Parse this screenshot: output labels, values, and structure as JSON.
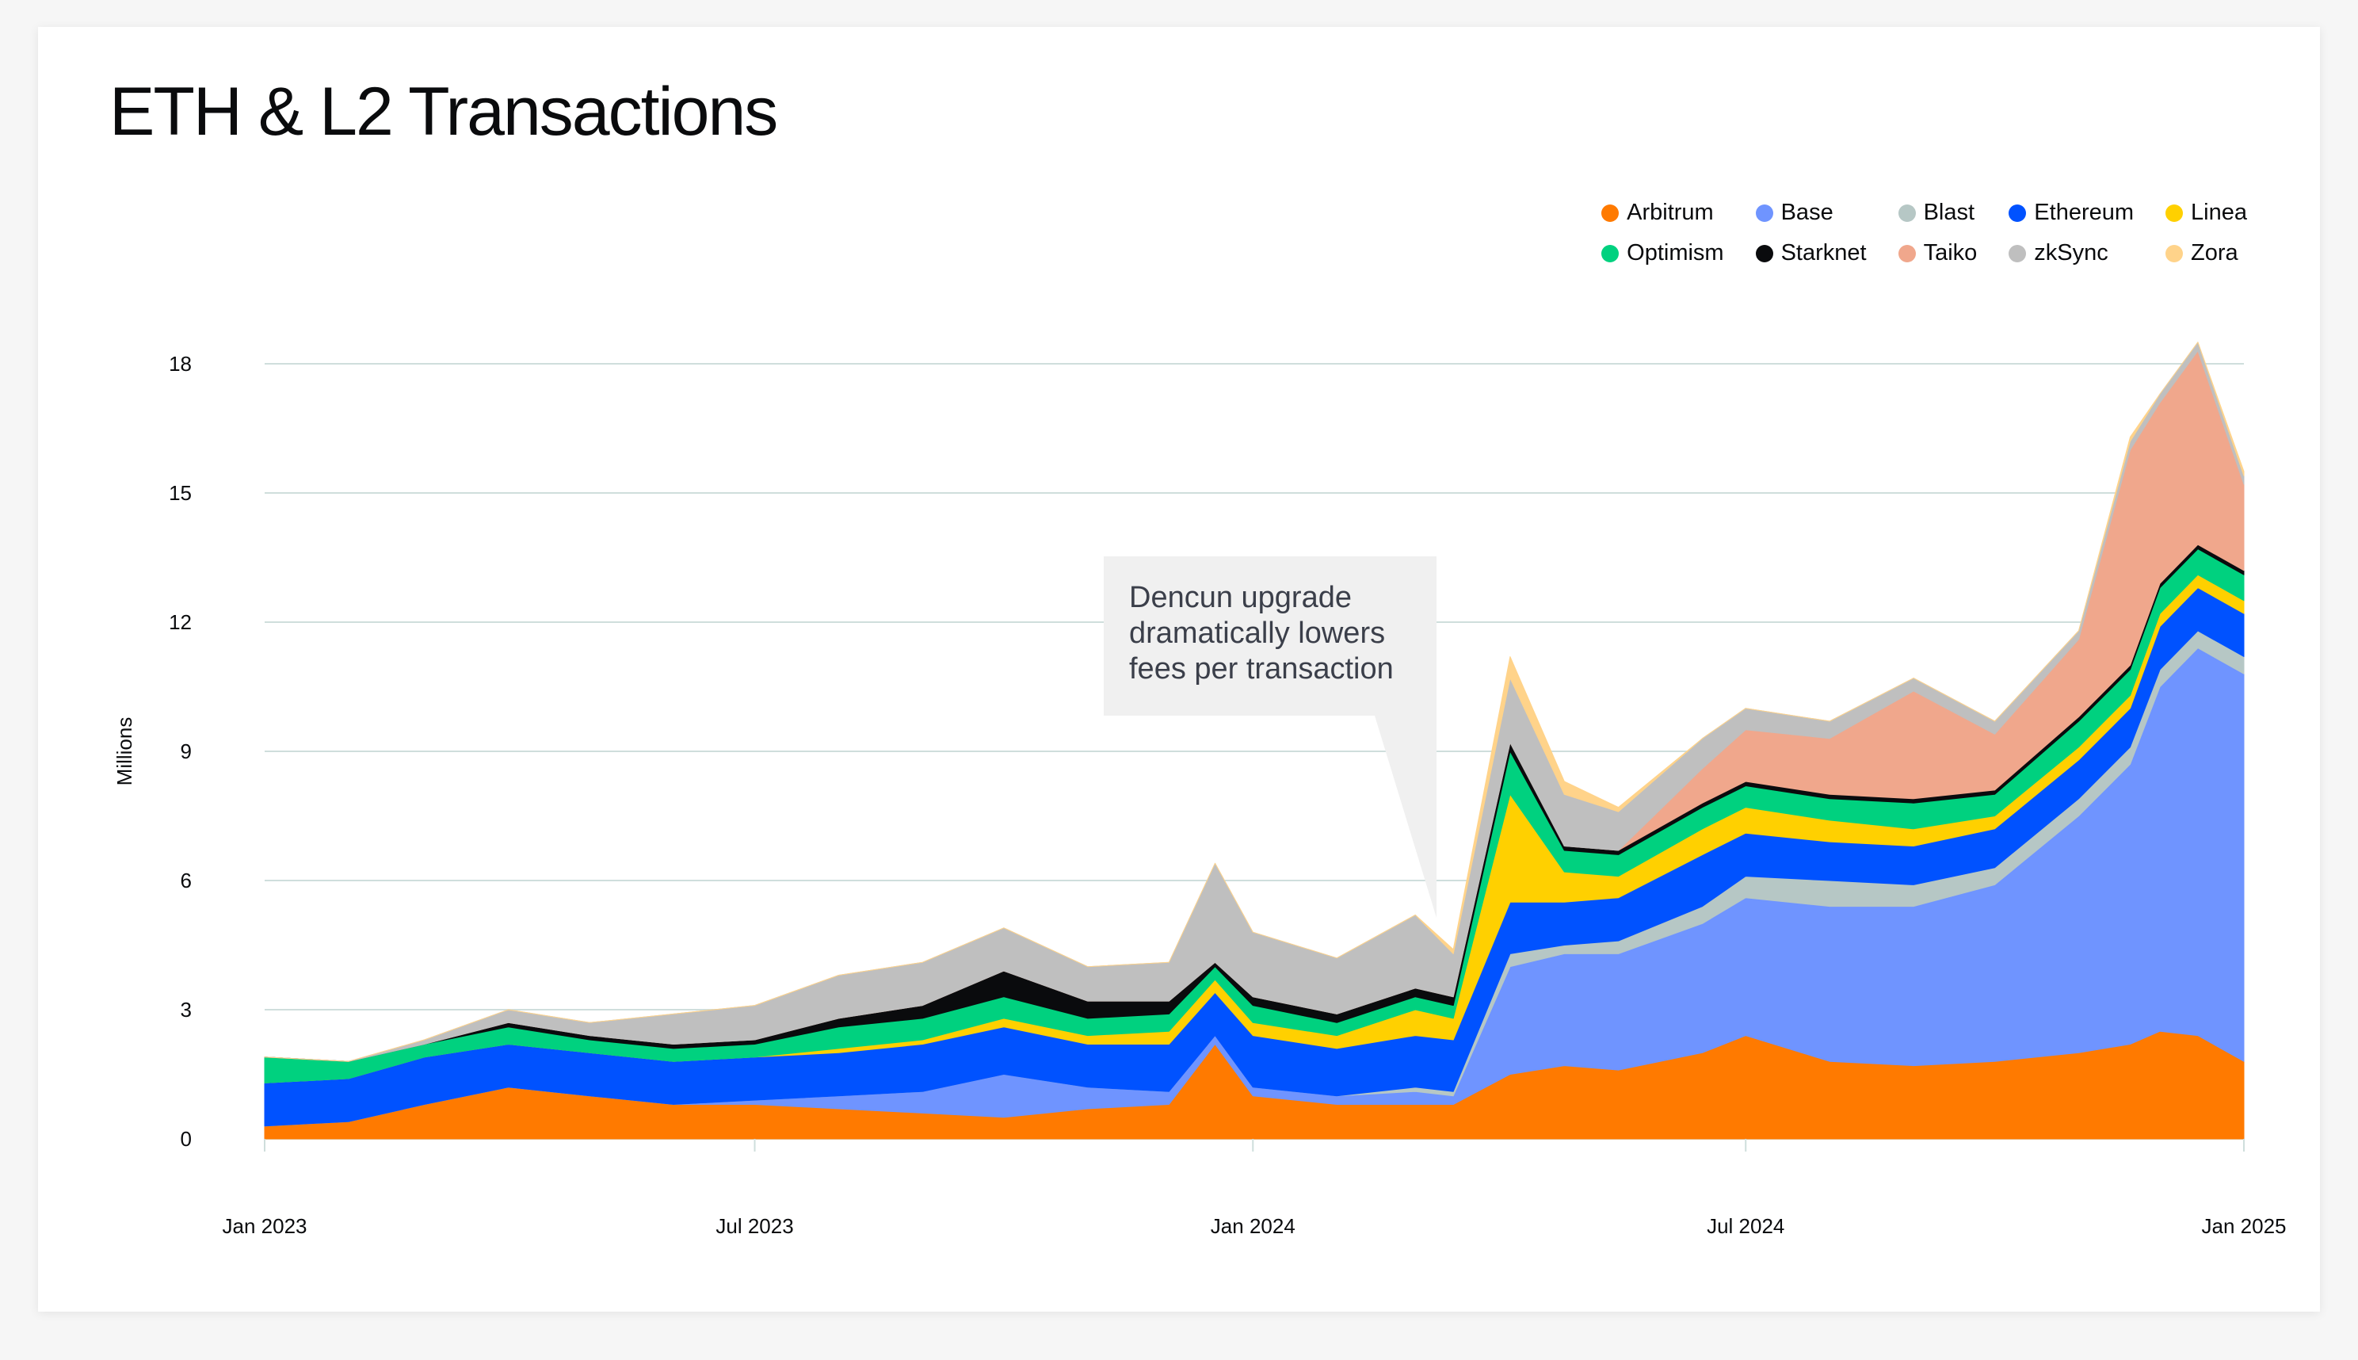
{
  "title": "ETH & L2 Transactions",
  "legend": [
    {
      "name": "Arbitrum",
      "color": "#ff7a00"
    },
    {
      "name": "Base",
      "color": "#6f94ff"
    },
    {
      "name": "Blast",
      "color": "#b6c7c5"
    },
    {
      "name": "Ethereum",
      "color": "#0052ff"
    },
    {
      "name": "Linea",
      "color": "#ffd000"
    },
    {
      "name": "Optimism",
      "color": "#00d17f"
    },
    {
      "name": "Starknet",
      "color": "#0a0b0d"
    },
    {
      "name": "Taiko",
      "color": "#f0a78c"
    },
    {
      "name": "zkSync",
      "color": "#bfbfbf"
    },
    {
      "name": "Zora",
      "color": "#ffd38a"
    }
  ],
  "annotation": [
    "Dencun upgrade",
    "dramatically lowers",
    "fees per transaction"
  ],
  "chart_data": {
    "type": "area",
    "stacked": true,
    "title": "ETH & L2 Transactions",
    "ylabel": "Millions",
    "xlabel": "",
    "ylim": [
      0,
      18
    ],
    "yticks": [
      "0",
      "3",
      "6",
      "9",
      "12",
      "15",
      "18"
    ],
    "xticks": [
      {
        "date": "2023-01-01",
        "label": "Jan 2023"
      },
      {
        "date": "2023-07-01",
        "label": "Jul 2023"
      },
      {
        "date": "2024-01-01",
        "label": "Jan 2024"
      },
      {
        "date": "2024-07-01",
        "label": "Jul 2024"
      },
      {
        "date": "2025-01-01",
        "label": "Jan 2025"
      }
    ],
    "xlim": [
      "2023-01-01",
      "2025-01-01"
    ],
    "grid": true,
    "legend_position": "top-right",
    "x": [
      "2023-01-01",
      "2023-02-01",
      "2023-03-01",
      "2023-04-01",
      "2023-05-01",
      "2023-06-01",
      "2023-07-01",
      "2023-08-01",
      "2023-09-01",
      "2023-10-01",
      "2023-11-01",
      "2023-12-01",
      "2023-12-18",
      "2024-01-01",
      "2024-02-01",
      "2024-03-01",
      "2024-03-15",
      "2024-04-05",
      "2024-04-25",
      "2024-05-15",
      "2024-06-15",
      "2024-07-01",
      "2024-08-01",
      "2024-09-01",
      "2024-10-01",
      "2024-11-01",
      "2024-11-20",
      "2024-12-01",
      "2024-12-15",
      "2025-01-01"
    ],
    "series": [
      {
        "name": "Arbitrum",
        "values": [
          0.3,
          0.4,
          0.8,
          1.2,
          1.0,
          0.8,
          0.8,
          0.7,
          0.6,
          0.5,
          0.7,
          0.8,
          2.2,
          1.0,
          0.8,
          0.8,
          0.8,
          1.5,
          1.7,
          1.6,
          2.0,
          2.4,
          1.8,
          1.7,
          1.8,
          2.0,
          2.2,
          2.5,
          2.4,
          1.8
        ]
      },
      {
        "name": "Base",
        "values": [
          0,
          0,
          0,
          0,
          0,
          0,
          0.1,
          0.3,
          0.5,
          1.0,
          0.5,
          0.3,
          0.2,
          0.2,
          0.2,
          0.3,
          0.2,
          2.5,
          2.6,
          2.7,
          3.0,
          3.2,
          3.6,
          3.7,
          4.1,
          5.5,
          6.5,
          8.0,
          9.0,
          9.0
        ]
      },
      {
        "name": "Blast",
        "values": [
          0,
          0,
          0,
          0,
          0,
          0,
          0,
          0,
          0,
          0,
          0,
          0,
          0,
          0,
          0,
          0.1,
          0.1,
          0.3,
          0.2,
          0.3,
          0.4,
          0.5,
          0.6,
          0.5,
          0.4,
          0.4,
          0.4,
          0.4,
          0.4,
          0.4
        ]
      },
      {
        "name": "Ethereum",
        "values": [
          1.0,
          1.0,
          1.1,
          1.0,
          1.0,
          1.0,
          1.0,
          1.0,
          1.1,
          1.1,
          1.0,
          1.1,
          1.0,
          1.2,
          1.1,
          1.2,
          1.2,
          1.2,
          1.0,
          1.0,
          1.2,
          1.0,
          0.9,
          0.9,
          0.9,
          0.9,
          0.9,
          1.0,
          1.0,
          1.0
        ]
      },
      {
        "name": "Linea",
        "values": [
          0,
          0,
          0,
          0,
          0,
          0,
          0,
          0.1,
          0.1,
          0.2,
          0.2,
          0.3,
          0.3,
          0.3,
          0.3,
          0.6,
          0.5,
          2.5,
          0.7,
          0.5,
          0.6,
          0.6,
          0.5,
          0.4,
          0.3,
          0.3,
          0.3,
          0.3,
          0.3,
          0.3
        ]
      },
      {
        "name": "Optimism",
        "values": [
          0.6,
          0.4,
          0.3,
          0.4,
          0.3,
          0.3,
          0.3,
          0.5,
          0.5,
          0.5,
          0.4,
          0.4,
          0.3,
          0.4,
          0.3,
          0.3,
          0.3,
          1.0,
          0.5,
          0.5,
          0.5,
          0.5,
          0.5,
          0.6,
          0.5,
          0.6,
          0.6,
          0.6,
          0.6,
          0.6
        ]
      },
      {
        "name": "Starknet",
        "values": [
          0,
          0,
          0,
          0.1,
          0.1,
          0.1,
          0.1,
          0.2,
          0.3,
          0.6,
          0.4,
          0.3,
          0.1,
          0.2,
          0.2,
          0.2,
          0.2,
          0.2,
          0.1,
          0.1,
          0.1,
          0.1,
          0.1,
          0.1,
          0.1,
          0.1,
          0.1,
          0.1,
          0.1,
          0.1
        ]
      },
      {
        "name": "Taiko",
        "values": [
          0,
          0,
          0,
          0,
          0,
          0,
          0,
          0,
          0,
          0,
          0,
          0,
          0,
          0,
          0,
          0,
          0,
          0,
          0,
          0,
          0.8,
          1.2,
          1.3,
          2.5,
          1.3,
          1.8,
          5.0,
          4.2,
          4.5,
          2.0
        ]
      },
      {
        "name": "zkSync",
        "values": [
          0,
          0,
          0.1,
          0.3,
          0.3,
          0.7,
          0.8,
          1.0,
          1.0,
          1.0,
          0.8,
          0.9,
          2.3,
          1.5,
          1.3,
          1.7,
          1.0,
          1.5,
          1.2,
          0.9,
          0.7,
          0.5,
          0.4,
          0.3,
          0.3,
          0.2,
          0.2,
          0.2,
          0.2,
          0.2
        ]
      },
      {
        "name": "Zora",
        "values": [
          0,
          0,
          0,
          0,
          0,
          0,
          0,
          0,
          0,
          0,
          0,
          0,
          0,
          0,
          0,
          0,
          0.1,
          0.5,
          0.3,
          0.1,
          0,
          0,
          0,
          0,
          0,
          0,
          0.1,
          0,
          0,
          0.1
        ]
      }
    ]
  }
}
